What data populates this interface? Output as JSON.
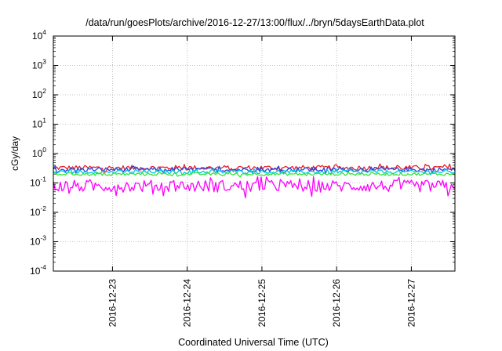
{
  "chart_data": {
    "type": "line",
    "title": "/data/run/goesPlots/archive/2016-12-27/13:00/flux/../bryn/5daysEarthData.plot",
    "xlabel": "Coordinated Universal Time (UTC)",
    "ylabel": "cGy/day",
    "yscale": "log",
    "ylim": [
      0.0001,
      10000
    ],
    "xlim": [
      "2016-12-22 05:00",
      "2016-12-27 14:00"
    ],
    "grid": true,
    "x_ticks": [
      "2016-12-23",
      "2016-12-24",
      "2016-12-25",
      "2016-12-26",
      "2016-12-27"
    ],
    "y_ticks": [
      {
        "base": "10",
        "exp": "-4"
      },
      {
        "base": "10",
        "exp": "-3"
      },
      {
        "base": "10",
        "exp": "-2"
      },
      {
        "base": "10",
        "exp": "-1"
      },
      {
        "base": "10",
        "exp": "0"
      },
      {
        "base": "10",
        "exp": "1"
      },
      {
        "base": "10",
        "exp": "2"
      },
      {
        "base": "10",
        "exp": "3"
      },
      {
        "base": "10",
        "exp": "4"
      }
    ],
    "series": [
      {
        "color": "#e8202a",
        "values_range": [
          0.22,
          0.45
        ]
      },
      {
        "color": "#2a3fe0",
        "values_range": [
          0.2,
          0.38
        ]
      },
      {
        "color": "#00c8e6",
        "values_range": [
          0.18,
          0.3
        ]
      },
      {
        "color": "#2ee62e",
        "values_range": [
          0.16,
          0.24
        ]
      },
      {
        "color": "#ff00ff",
        "values_range": [
          0.03,
          0.17
        ]
      }
    ]
  }
}
